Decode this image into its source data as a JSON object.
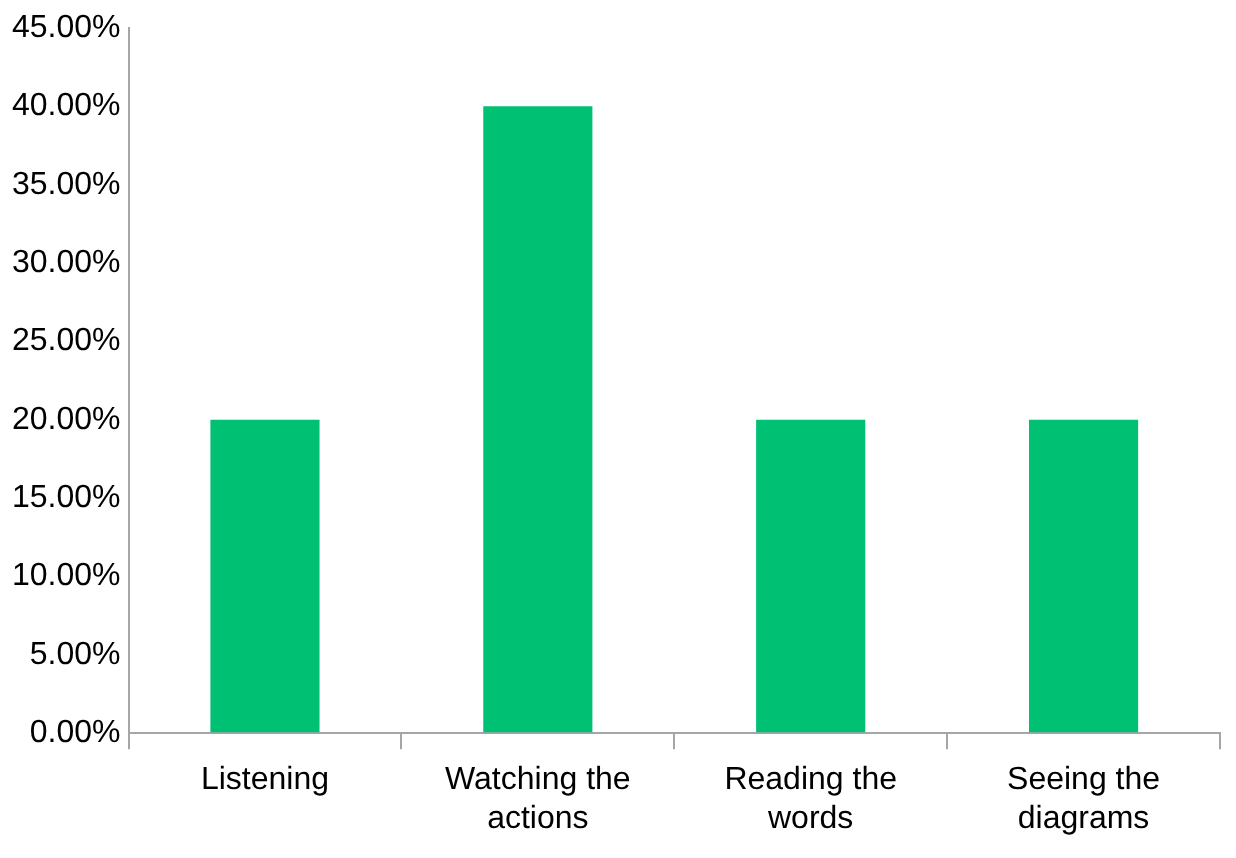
{
  "chart_data": {
    "type": "bar",
    "categories": [
      "Listening",
      "Watching the actions",
      "Reading the words",
      "Seeing the diagrams"
    ],
    "values": [
      20,
      40,
      20,
      20
    ],
    "color": "#00c073",
    "ylim": [
      0,
      45
    ],
    "yticks": [
      {
        "value": 0,
        "label": "0.00%"
      },
      {
        "value": 5,
        "label": "5.00%"
      },
      {
        "value": 10,
        "label": "10.00%"
      },
      {
        "value": 15,
        "label": "15.00%"
      },
      {
        "value": 20,
        "label": "20.00%"
      },
      {
        "value": 25,
        "label": "25.00%"
      },
      {
        "value": 30,
        "label": "30.00%"
      },
      {
        "value": 35,
        "label": "35.00%"
      },
      {
        "value": 40,
        "label": "40.00%"
      },
      {
        "value": 45,
        "label": "45.00%"
      }
    ],
    "grid": false,
    "legend": false
  }
}
